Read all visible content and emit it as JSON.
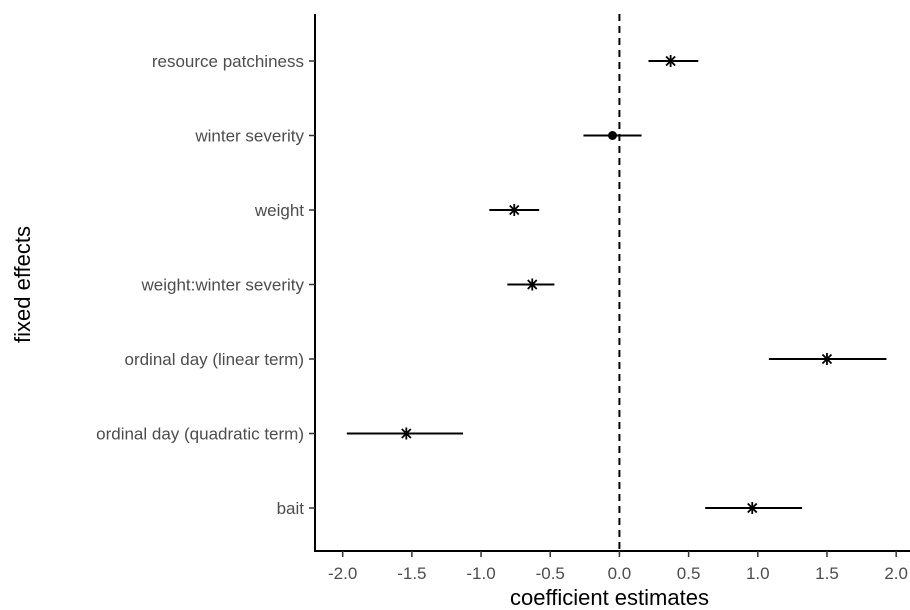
{
  "chart_data": {
    "type": "forest",
    "xlabel": "coefficient estimates",
    "ylabel": "fixed effects",
    "xlim": [
      -2.2,
      2.1
    ],
    "xticks": [
      -2.0,
      -1.5,
      -1.0,
      -0.5,
      0.0,
      0.5,
      1.0,
      1.5,
      2.0
    ],
    "xtick_labels": [
      "-2.0",
      "-1.5",
      "-1.0",
      "-0.5",
      "0.0",
      "0.5",
      "1.0",
      "1.5",
      "2.0"
    ],
    "reference_line": 0.0,
    "grid": false,
    "legend": "none",
    "rows": [
      {
        "label": "resource patchiness",
        "estimate": 0.37,
        "lower": 0.21,
        "upper": 0.57,
        "marker": "asterisk"
      },
      {
        "label": "winter severity",
        "estimate": -0.05,
        "lower": -0.26,
        "upper": 0.16,
        "marker": "dot"
      },
      {
        "label": "weight",
        "estimate": -0.76,
        "lower": -0.94,
        "upper": -0.58,
        "marker": "asterisk"
      },
      {
        "label": "weight:winter severity",
        "estimate": -0.63,
        "lower": -0.81,
        "upper": -0.47,
        "marker": "asterisk"
      },
      {
        "label": "ordinal day (linear term)",
        "estimate": 1.5,
        "lower": 1.08,
        "upper": 1.93,
        "marker": "asterisk"
      },
      {
        "label": "ordinal day (quadratic term)",
        "estimate": -1.54,
        "lower": -1.97,
        "upper": -1.13,
        "marker": "asterisk"
      },
      {
        "label": "bait",
        "estimate": 0.96,
        "lower": 0.62,
        "upper": 1.32,
        "marker": "asterisk"
      }
    ]
  }
}
